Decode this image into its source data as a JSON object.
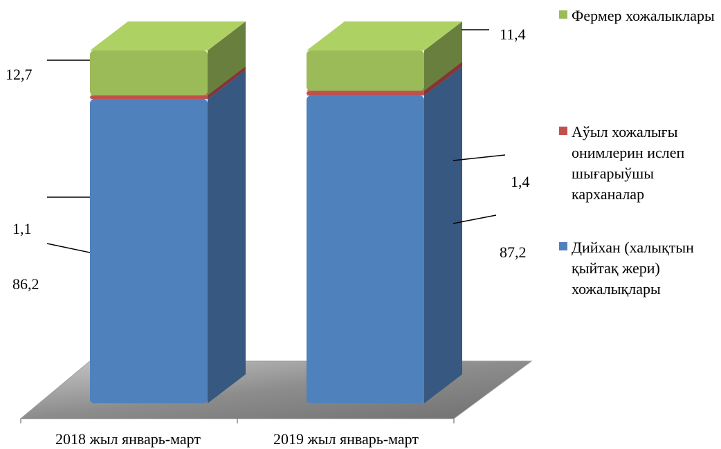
{
  "chart_data": {
    "type": "bar",
    "stacked": true,
    "three_d": true,
    "categories": [
      "2018 жыл январь-март",
      "2019 жыл январь-март"
    ],
    "series": [
      {
        "name": "Дийхан (халықтын қыйтақ жери) хожалықлары",
        "values": [
          86.2,
          87.2
        ],
        "color": "#4F81BD"
      },
      {
        "name": "Аўыл хожалығы онимлерин ислеп шығарыўшы карханалар",
        "values": [
          1.1,
          1.4
        ],
        "color": "#C0504D"
      },
      {
        "name": "Фермер хожалыклары",
        "values": [
          12.7,
          11.4
        ],
        "color": "#9BBB59"
      }
    ],
    "data_labels": [
      [
        "86,2",
        "87,2"
      ],
      [
        "1,1",
        "1,4"
      ],
      [
        "12,7",
        "11,4"
      ]
    ],
    "ylim": [
      0,
      100
    ],
    "legend_position": "right",
    "grid": false
  }
}
